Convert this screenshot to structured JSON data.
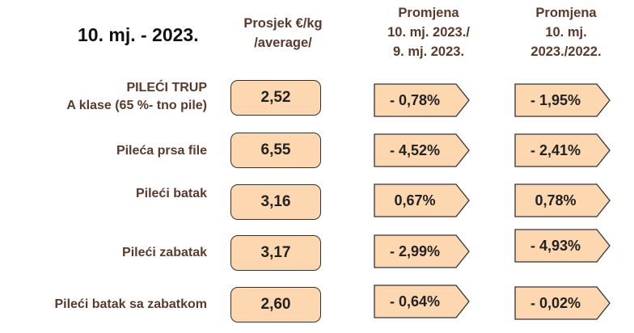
{
  "title": "10. mj. - 2023.",
  "headers": {
    "average": [
      "Prosjek €/kg",
      "/average/"
    ],
    "change_month": [
      "Promjena",
      "10. mj. 2023./",
      "9. mj. 2023."
    ],
    "change_year": [
      "Promjena",
      "10. mj.",
      "2023./2022."
    ]
  },
  "rows": [
    {
      "label": [
        "PILEĆI TRUP",
        "A klase (65 %- tno pile)"
      ],
      "average": "2,52",
      "change_month": "- 0,78%",
      "change_year": "- 1,95%"
    },
    {
      "label": [
        "Pileća prsa file"
      ],
      "average": "6,55",
      "change_month": "- 4,52%",
      "change_year": "- 2,41%"
    },
    {
      "label": [
        "Pileći batak"
      ],
      "average": "3,16",
      "change_month": "0,67%",
      "change_year": "0,78%"
    },
    {
      "label": [
        "Pileći zabatak"
      ],
      "average": "3,17",
      "change_month": "- 2,99%",
      "change_year": "- 4,93%"
    },
    {
      "label": [
        "Pileći batak sa zabatkom"
      ],
      "average": "2,60",
      "change_month": "- 0,64%",
      "change_year": "- 0,02%"
    }
  ],
  "colors": {
    "fill": "#fdd7b0",
    "stroke": "#333333",
    "text": "#5a3a2a"
  }
}
